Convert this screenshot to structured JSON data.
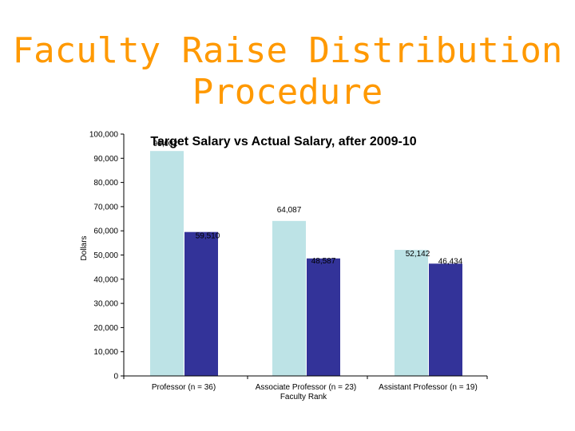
{
  "slide": {
    "title_line1": "Faculty Raise Distribution",
    "title_line2": "Procedure"
  },
  "colors": {
    "title": "#ff9900",
    "target": "#bde3e6",
    "actual": "#333399"
  },
  "chart_data": {
    "type": "bar",
    "title": "Target Salary vs Actual Salary, after 2009-10",
    "xlabel": "Faculty Rank",
    "ylabel": "Dollars",
    "ylim": [
      0,
      100000
    ],
    "yticks": [
      "0",
      "10,000",
      "20,000",
      "30,000",
      "40,000",
      "50,000",
      "60,000",
      "70,000",
      "80,000",
      "90,000",
      "100,000"
    ],
    "categories": [
      "Professor (n = 36)",
      "Associate Professor (n = 23)",
      "Assistant Professor (n = 19)"
    ],
    "series": [
      {
        "values": [
          93002,
          64087,
          52142
        ],
        "labels": [
          "93,002",
          "64,087",
          "52,142"
        ]
      },
      {
        "values": [
          59510,
          48587,
          46434
        ],
        "labels": [
          "59,510",
          "48,587",
          "46,434"
        ]
      }
    ],
    "grid": false,
    "legend": "none"
  }
}
